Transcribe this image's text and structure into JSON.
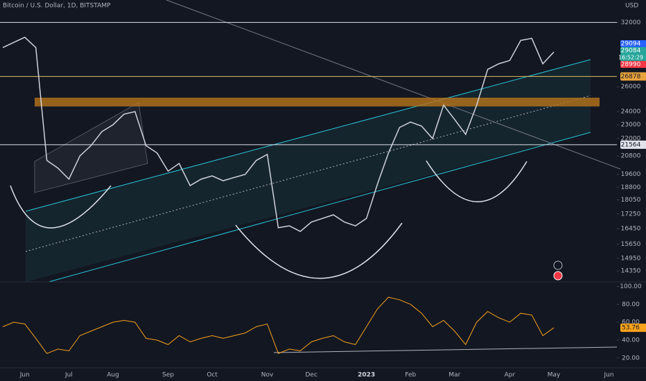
{
  "chart_data": [
    {
      "type": "line",
      "title": "Bitcoin / U.S. Dollar, 1D, BITSTAMP",
      "currency": "USD",
      "categories": [
        null,
        null,
        "Jun",
        null,
        null,
        null,
        "Jul",
        null,
        null,
        null,
        "Aug",
        null,
        null,
        null,
        null,
        "Sep",
        null,
        null,
        null,
        "Oct",
        null,
        null,
        null,
        null,
        "Nov",
        null,
        null,
        null,
        "Dec",
        null,
        null,
        null,
        null,
        "2023",
        null,
        null,
        null,
        "Feb",
        null,
        null,
        null,
        "Mar",
        null,
        null,
        null,
        null,
        "Apr",
        null,
        null,
        null,
        "May",
        null,
        null,
        null,
        null,
        "Jun"
      ],
      "values": [
        29500,
        30000,
        30500,
        29500,
        20500,
        20000,
        19300,
        20800,
        21500,
        22500,
        23000,
        23800,
        24000,
        21500,
        21000,
        19800,
        20300,
        18900,
        19300,
        19500,
        19200,
        19400,
        19600,
        20500,
        20900,
        16500,
        16600,
        16300,
        16800,
        17000,
        17200,
        16800,
        16600,
        17000,
        19000,
        21000,
        22800,
        23200,
        22900,
        22000,
        24500,
        23400,
        22300,
        24500,
        27500,
        28000,
        28300,
        30200,
        30400,
        28000,
        29084,
        null,
        null,
        null,
        null,
        null
      ],
      "color": "#d1d4dc",
      "log": true,
      "ylim": [
        13850,
        34400
      ],
      "yticks": [
        32000,
        26000,
        24000,
        23000,
        22000,
        20800,
        19600,
        18800,
        18050,
        17250,
        16450,
        15650,
        14950,
        14350
      ],
      "levels": [
        {
          "value": 32000,
          "color": "#e0e3eb"
        },
        {
          "value": 26878,
          "color": "#e0c060"
        },
        {
          "value": 21564,
          "color": "#e0e3eb"
        }
      ],
      "zone": [
        24400,
        25100
      ],
      "zone_color": "#b8741a",
      "price_tags": [
        {
          "value": 29094,
          "color": "#2962ff"
        },
        {
          "value": 29084,
          "color": "#26a69a"
        },
        {
          "value": 28990,
          "color": "#f23645"
        }
      ],
      "countdown": "16:52:29"
    },
    {
      "type": "line",
      "values": [
        55,
        60,
        58,
        42,
        25,
        30,
        28,
        45,
        50,
        55,
        60,
        62,
        60,
        42,
        40,
        35,
        45,
        38,
        42,
        45,
        42,
        45,
        48,
        55,
        58,
        25,
        30,
        28,
        38,
        42,
        45,
        38,
        35,
        55,
        75,
        88,
        85,
        80,
        70,
        55,
        62,
        50,
        35,
        60,
        72,
        65,
        60,
        70,
        68,
        45,
        53.76,
        null,
        null,
        null,
        null,
        null
      ],
      "color": "#f7a21b",
      "ylim": [
        9,
        105
      ],
      "yticks": [
        {
          "value": 100,
          "label": "100.00"
        },
        {
          "value": 80,
          "label": "80.00"
        },
        {
          "value": 60,
          "label": "60.00"
        },
        {
          "value": 40,
          "label": "40.00"
        },
        {
          "value": 20,
          "label": "20.00"
        }
      ]
    }
  ]
}
